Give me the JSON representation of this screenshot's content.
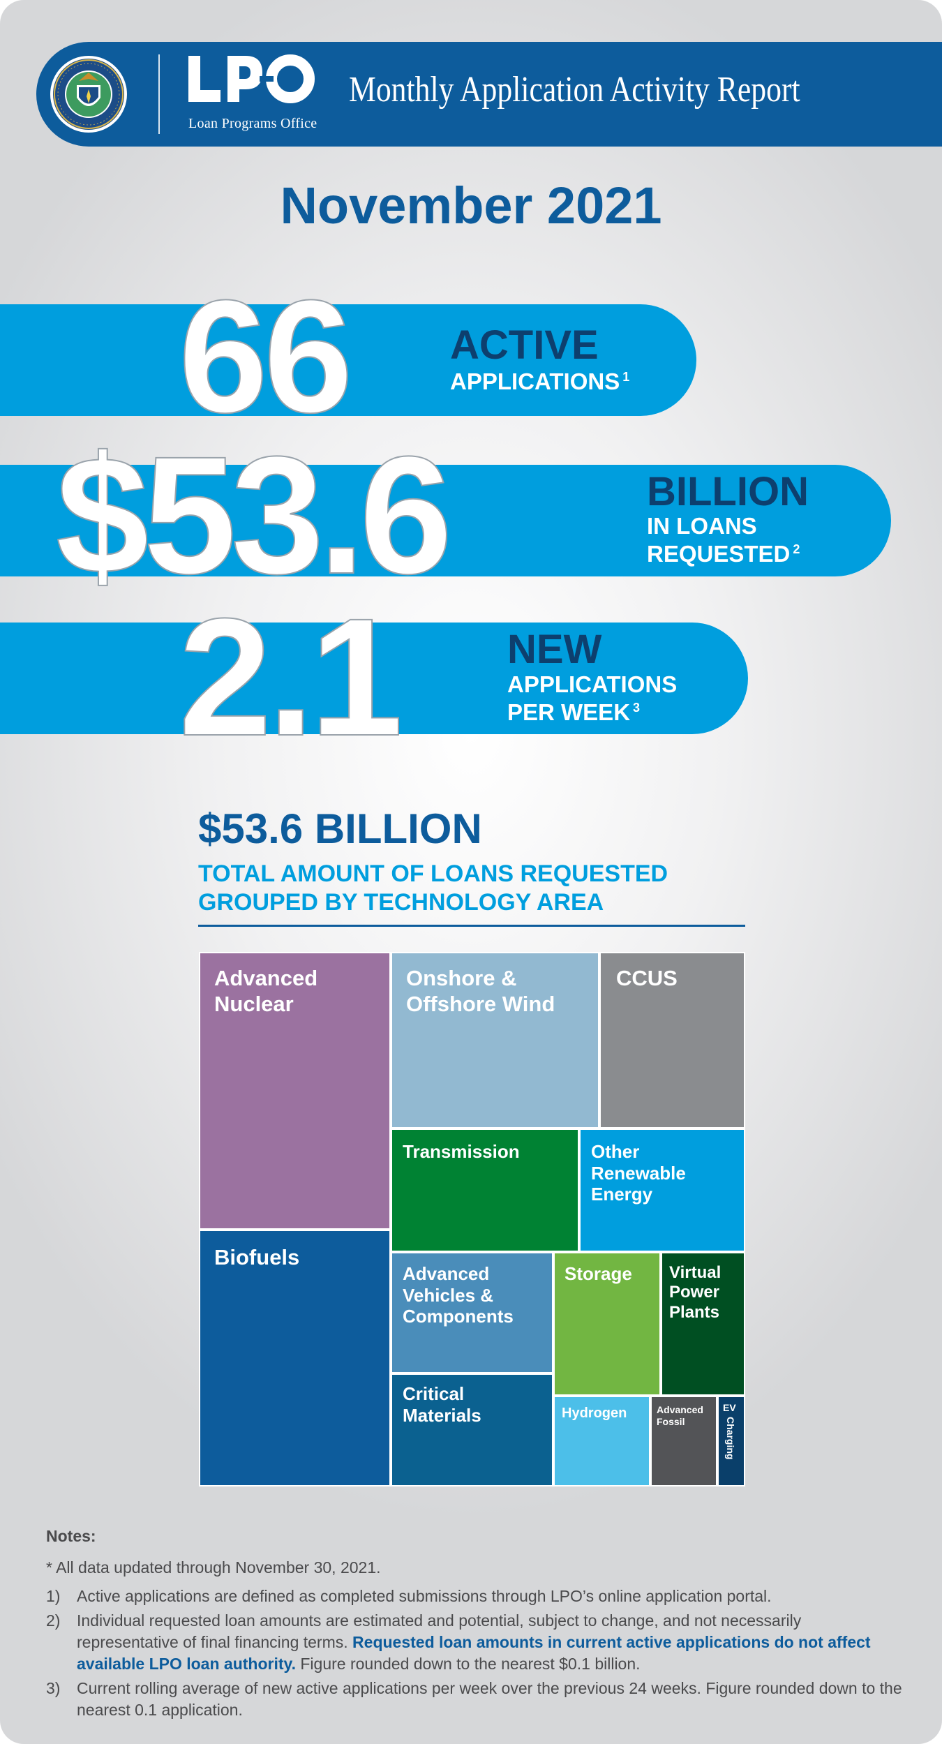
{
  "header": {
    "seal_alt": "DEPARTMENT OF ENERGY · UNITED STATES OF AMERICA",
    "logo_text": "LPO",
    "logo_subtitle": "Loan Programs Office",
    "report_title": "Monthly Application Activity Report"
  },
  "period": "November 2021",
  "stats": [
    {
      "number": "66",
      "head": "ACTIVE",
      "line1": "APPLICATIONS",
      "line2": "",
      "note": "1"
    },
    {
      "number": "$53.6",
      "head": "BILLION",
      "line1": "IN LOANS",
      "line2": "REQUESTED",
      "note": "2"
    },
    {
      "number": "2.1",
      "head": "NEW",
      "line1": "APPLICATIONS",
      "line2": "PER WEEK",
      "note": "3"
    }
  ],
  "colors": {
    "navy": "#0d5c9c",
    "cyan": "#009ede",
    "dark_head": "#0d3f6e"
  },
  "chart_data": {
    "type": "treemap",
    "title": "$53.6 BILLION",
    "subtitle_line1": "TOTAL AMOUNT OF LOANS REQUESTED",
    "subtitle_line2": "GROUPED BY TECHNOLOGY AREA",
    "total_billion": 53.6,
    "categories": [
      {
        "name": "Advanced Nuclear",
        "color": "#9b72a0",
        "approx_share": 0.179
      },
      {
        "name": "Biofuels",
        "color": "#0d5c9c",
        "approx_share": 0.164
      },
      {
        "name": "Onshore & Offshore Wind",
        "color": "#92b9d1",
        "approx_share": 0.107
      },
      {
        "name": "CCUS",
        "color": "#8a8c8f",
        "approx_share": 0.089
      },
      {
        "name": "Transmission",
        "color": "#008233",
        "approx_share": 0.081
      },
      {
        "name": "Other Renewable Energy",
        "color": "#009ede",
        "approx_share": 0.072
      },
      {
        "name": "Advanced Vehicles & Components",
        "color": "#4a8dba",
        "approx_share": 0.063
      },
      {
        "name": "Critical Materials",
        "color": "#0b6190",
        "approx_share": 0.063
      },
      {
        "name": "Storage",
        "color": "#72b642",
        "approx_share": 0.054
      },
      {
        "name": "Virtual Power Plants",
        "color": "#004f22",
        "approx_share": 0.047
      },
      {
        "name": "Hydrogen",
        "color": "#4cbfe9",
        "approx_share": 0.037
      },
      {
        "name": "Advanced Fossil",
        "color": "#535457",
        "approx_share": 0.025
      },
      {
        "name": "EV Charging",
        "color": "#0a3f6a",
        "approx_share": 0.01
      }
    ]
  },
  "notes": {
    "heading": "Notes:",
    "star": "* All data updated through November 30, 2021.",
    "items": [
      {
        "num": "1)",
        "text": "Active applications are defined as completed submissions through LPO’s online application portal.",
        "bold": "",
        "tail": ""
      },
      {
        "num": "2)",
        "text": "Individual requested loan amounts are estimated and potential, subject to change, and not necessarily representative of final financing terms.",
        "bold": "Requested loan amounts in current active applications do not affect available LPO loan authority.",
        "tail": "Figure rounded down to the nearest $0.1 billion."
      },
      {
        "num": "3)",
        "text": "Current rolling average of new active applications per week over the previous 24 weeks. Figure rounded down to the nearest 0.1 application.",
        "bold": "",
        "tail": ""
      }
    ]
  }
}
